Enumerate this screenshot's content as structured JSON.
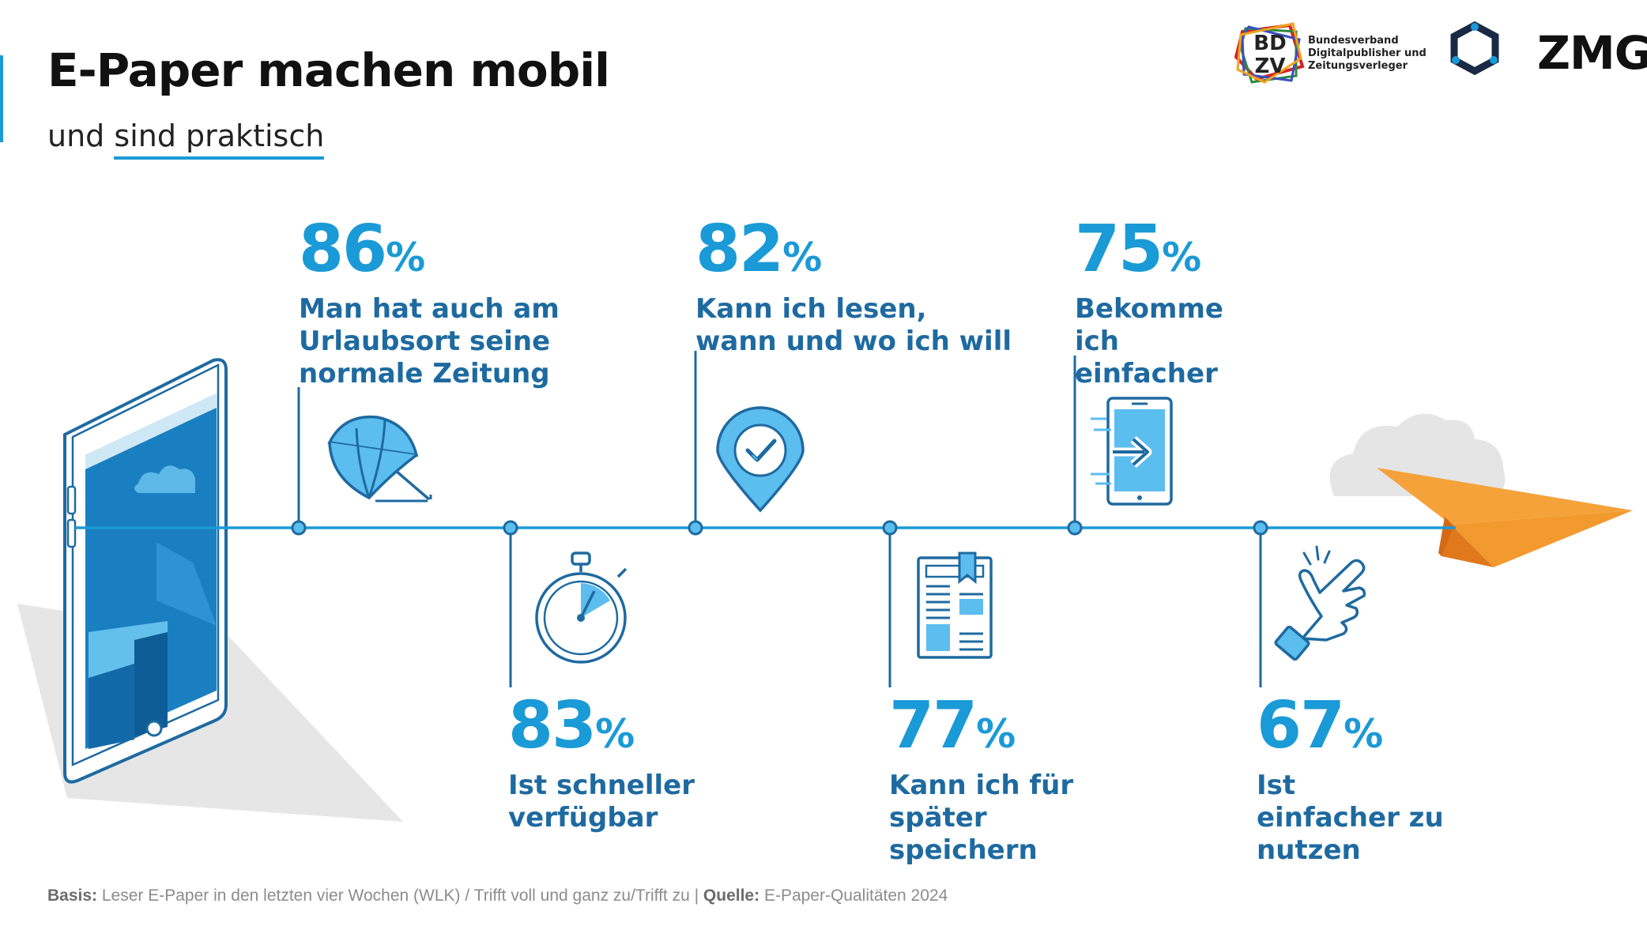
{
  "header": {
    "title": "E-Paper machen mobil",
    "subtitle_prefix": "und",
    "subtitle_highlight": "sind praktisch"
  },
  "logos": {
    "bdzv_letters": "BDZV",
    "bdzv_name": "Bundesverband Digitalpublisher und Zeitungsverleger",
    "zmg_name": "ZMG"
  },
  "chart_data": {
    "type": "timeline",
    "unit": "%",
    "title": "E-Paper machen mobil",
    "subtitle": "und sind praktisch",
    "items": [
      {
        "value": 86,
        "label": "Man hat auch am Urlaubsort seine normale Zeitung",
        "icon": "beach-umbrella-icon"
      },
      {
        "value": 83,
        "label": "Ist schneller verfügbar",
        "icon": "stopwatch-icon"
      },
      {
        "value": 82,
        "label": "Kann ich lesen, wann und wo ich will",
        "icon": "location-check-icon"
      },
      {
        "value": 77,
        "label": "Kann ich für später speichern",
        "icon": "newspaper-bookmark-icon"
      },
      {
        "value": 75,
        "label": "Bekomme ich einfacher",
        "icon": "tablet-arrow-icon"
      },
      {
        "value": 67,
        "label": "Ist einfacher zu nutzen",
        "icon": "tap-hand-icon"
      }
    ]
  },
  "footnote": {
    "basis_label": "Basis:",
    "basis_text": "Leser E-Paper in den letzten vier Wochen (WLK)  / Trifft voll und ganz zu/Trifft zu  |",
    "source_label": "Quelle:",
    "source_text": "E-Paper-Qualitäten 2024"
  },
  "colors": {
    "accent": "#1a9ad6",
    "dark_blue": "#1e6aa0",
    "navy": "#0e4f80",
    "orange": "#f29a2e",
    "grey": "#e5e5e5"
  }
}
